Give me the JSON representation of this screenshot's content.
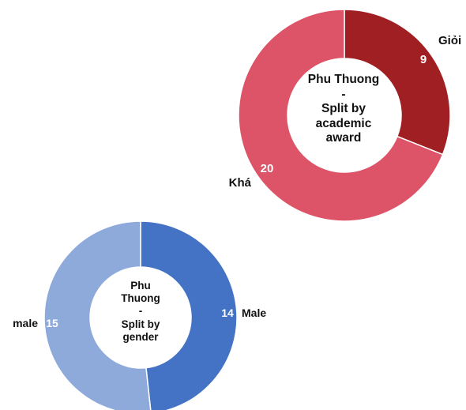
{
  "chart_data": [
    {
      "type": "pie",
      "donut": true,
      "title_lines": [
        "Phu Thuong",
        "-",
        "Split by",
        "academic",
        "award"
      ],
      "slices": [
        {
          "label": "Giỏi",
          "value": 9,
          "color": "#9f1f22"
        },
        {
          "label": "Khá",
          "value": 20,
          "color": "#dd5468"
        }
      ]
    },
    {
      "type": "pie",
      "donut": true,
      "title_lines": [
        "Phu",
        "Thuong",
        "-",
        "Split by",
        "gender"
      ],
      "slices": [
        {
          "label": "Male",
          "value": 14,
          "color": "#4472c4"
        },
        {
          "label": "male",
          "value": 15,
          "color": "#8eaadb"
        }
      ]
    }
  ]
}
